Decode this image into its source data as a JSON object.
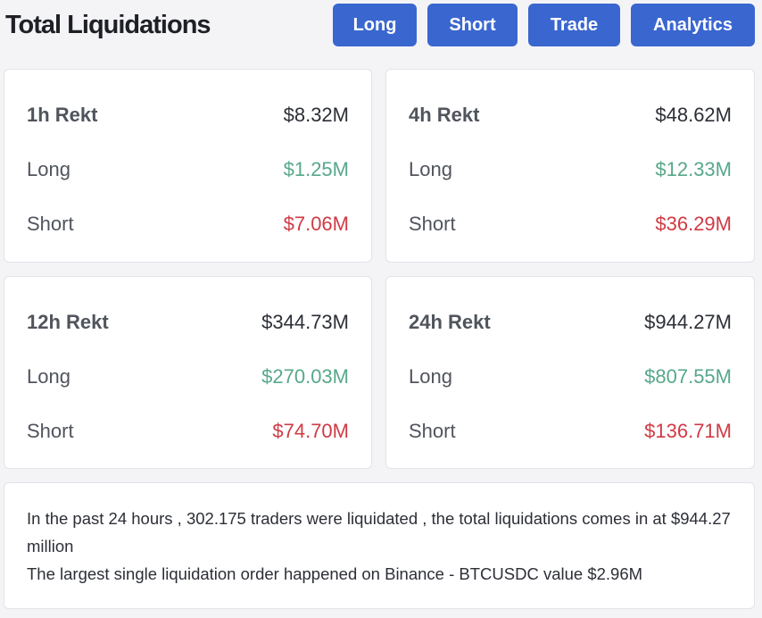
{
  "header": {
    "title": "Total Liquidations",
    "buttons": {
      "long": "Long",
      "short": "Short",
      "trade": "Trade",
      "analytics": "Analytics"
    }
  },
  "cards": [
    {
      "title": "1h Rekt",
      "total": "$8.32M",
      "long_label": "Long",
      "long_value": "$1.25M",
      "short_label": "Short",
      "short_value": "$7.06M"
    },
    {
      "title": "4h Rekt",
      "total": "$48.62M",
      "long_label": "Long",
      "long_value": "$12.33M",
      "short_label": "Short",
      "short_value": "$36.29M"
    },
    {
      "title": "12h Rekt",
      "total": "$344.73M",
      "long_label": "Long",
      "long_value": "$270.03M",
      "short_label": "Short",
      "short_value": "$74.70M"
    },
    {
      "title": "24h Rekt",
      "total": "$944.27M",
      "long_label": "Long",
      "long_value": "$807.55M",
      "short_label": "Short",
      "short_value": "$136.71M"
    }
  ],
  "summary": {
    "line1": "In the past 24 hours , 302.175 traders were liquidated , the total liquidations comes in at $944.27 million",
    "line2": "The largest single liquidation order happened on Binance - BTCUSDC value $2.96M"
  },
  "colors": {
    "accent": "#3a66d0",
    "long": "#57a88a",
    "short": "#d03a44"
  }
}
